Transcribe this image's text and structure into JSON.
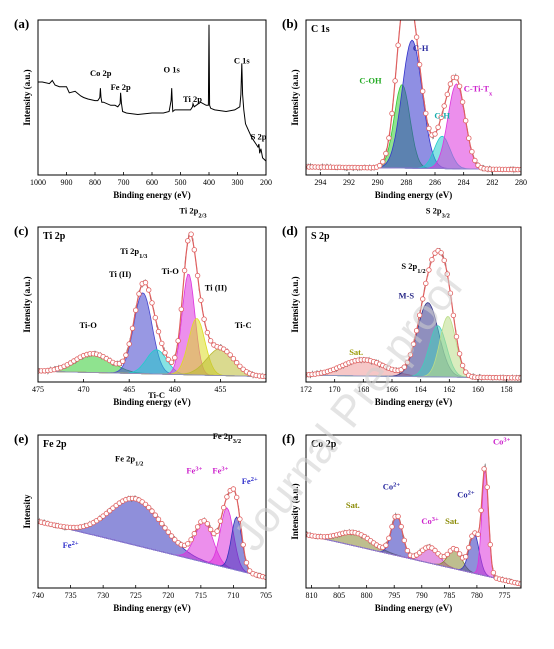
{
  "watermark": "Journal Pre-proof",
  "chart_data": [
    {
      "panel": "(a)",
      "type": "line",
      "subtitle": "",
      "xlabel": "Binding energy (eV)",
      "ylabel": "Intensity (a.u.)",
      "xlim": [
        1000,
        200
      ],
      "xreversed": true,
      "xticks": [
        1000,
        900,
        800,
        700,
        600,
        500,
        400,
        300,
        200
      ],
      "ylim": [
        0,
        100
      ],
      "yticks_shown": false,
      "series": [
        {
          "color": "#000000",
          "x": [
            1000,
            985,
            960,
            950,
            940,
            925,
            900,
            890,
            870,
            850,
            840,
            825,
            800,
            790,
            783,
            781,
            779,
            776,
            770,
            745,
            730,
            720,
            712,
            710,
            707,
            703,
            690,
            650,
            600,
            560,
            540,
            533,
            531,
            529,
            527,
            520,
            505,
            480,
            465,
            458,
            456,
            452,
            445,
            430,
            410,
            402,
            400,
            398,
            394,
            380,
            340,
            310,
            292,
            288,
            284.8,
            282,
            278,
            272,
            250,
            235,
            228,
            225,
            222,
            218,
            212,
            200
          ],
          "y": [
            60,
            60,
            59,
            61,
            58,
            57,
            57,
            53,
            54,
            51,
            50,
            49,
            48,
            48,
            50,
            56,
            50,
            47,
            47,
            45,
            45,
            44,
            46,
            53,
            46,
            41,
            40,
            39,
            40,
            40,
            41,
            48,
            56,
            48,
            41,
            42,
            42,
            42,
            42,
            44,
            46,
            44,
            45,
            47,
            45,
            45,
            97,
            45,
            43,
            42,
            41,
            42,
            44,
            52,
            72,
            52,
            42,
            33,
            24,
            20,
            18,
            20,
            14,
            17,
            11,
            9
          ]
        }
      ],
      "annotations": [
        {
          "text": "Co 2p",
          "x": 780,
          "y": 64
        },
        {
          "text": "Fe 2p",
          "x": 710,
          "y": 55
        },
        {
          "text": "O 1s",
          "x": 531,
          "y": 66
        },
        {
          "text": "Ti 2p",
          "x": 458,
          "y": 47
        },
        {
          "text": "C 1s",
          "x": 285,
          "y": 72
        },
        {
          "text": "S 2p",
          "x": 226,
          "y": 23
        }
      ]
    },
    {
      "panel": "(b)",
      "type": "line",
      "subtitle": "C 1s",
      "xlabel": "Binding energy (eV)",
      "ylabel": "Intensity (a.u.)",
      "xlim": [
        295,
        280
      ],
      "xreversed": true,
      "xticks": [
        294,
        292,
        290,
        288,
        286,
        284,
        282,
        280
      ],
      "ylim": [
        0,
        115
      ],
      "baseline": {
        "x": [
          295,
          280
        ],
        "y": [
          6,
          4
        ]
      },
      "components": [
        {
          "name": "C-OH",
          "center": 288.3,
          "height": 62,
          "sigma": 0.55,
          "color": "#33cc33"
        },
        {
          "name": "C-H",
          "center": 287.6,
          "height": 95,
          "sigma": 0.7,
          "color": "#3333cc"
        },
        {
          "name": "C-H",
          "center": 285.5,
          "height": 24,
          "sigma": 0.55,
          "color": "#22cccc"
        },
        {
          "name": "C-Ti-Tx",
          "center": 284.5,
          "height": 63,
          "sigma": 0.6,
          "color": "#dd33dd"
        }
      ],
      "annotations": [
        {
          "text": "C-OH",
          "x": 290.5,
          "y": 68,
          "color": "#22aa22"
        },
        {
          "text": "C-H",
          "x": 287.0,
          "y": 92,
          "color": "#2a2aa0"
        },
        {
          "text": "C-H",
          "x": 285.5,
          "y": 42,
          "color": "#11aaaa"
        },
        {
          "text": "C-Ti-Tx",
          "x": 283.0,
          "y": 62,
          "color": "#cc22cc"
        }
      ]
    },
    {
      "panel": "(c)",
      "type": "line",
      "subtitle": "Ti 2p",
      "xlabel": "Binding energy (eV)",
      "ylabel": "Intensity (a.u.)",
      "xlim": [
        475,
        450
      ],
      "xreversed": true,
      "xticks": [
        475,
        470,
        465,
        460,
        455
      ],
      "ylim": [
        0,
        115
      ],
      "baseline": {
        "x": [
          475,
          450
        ],
        "y": [
          8,
          4
        ]
      },
      "components": [
        {
          "name": "Ti-O",
          "center": 469.0,
          "height": 14,
          "sigma": 2.0,
          "color": "#33cc33"
        },
        {
          "name": "Ti (II)",
          "center": 463.5,
          "height": 60,
          "sigma": 1.0,
          "color": "#4444cc"
        },
        {
          "name": "Ti-C",
          "center": 462.0,
          "height": 18,
          "sigma": 1.1,
          "color": "#22cccc"
        },
        {
          "name": "Ti-O",
          "center": 458.5,
          "height": 75,
          "sigma": 0.7,
          "color": "#dd33dd"
        },
        {
          "name": "Ti (II)",
          "center": 457.6,
          "height": 42,
          "sigma": 0.9,
          "color": "#dddd22"
        },
        {
          "name": "Ti-C",
          "center": 455.0,
          "height": 20,
          "sigma": 1.5,
          "color": "#bbbb33"
        }
      ],
      "annotations": [
        {
          "text": "Ti-O",
          "x": 469.5,
          "y": 40,
          "color": "#000000"
        },
        {
          "text": "Ti (II)",
          "x": 466.0,
          "y": 78,
          "color": "#000000"
        },
        {
          "text": "Ti 2p1/3",
          "x": 464.5,
          "y": 95,
          "color": "#000000"
        },
        {
          "text": "Ti 2p2/3",
          "x": 458.0,
          "y": 125,
          "color": "#000000"
        },
        {
          "text": "Ti-O",
          "x": 460.5,
          "y": 80,
          "color": "#000000"
        },
        {
          "text": "Ti (II)",
          "x": 455.5,
          "y": 68,
          "color": "#000000"
        },
        {
          "text": "Ti-C",
          "x": 452.5,
          "y": 40,
          "color": "#000000"
        },
        {
          "text": "Ti-C",
          "x": 462.0,
          "y": -12,
          "color": "#000000"
        }
      ]
    },
    {
      "panel": "(d)",
      "type": "line",
      "subtitle": "S 2p",
      "xlabel": "Binding energy (eV)",
      "ylabel": "Intensity (a.u.)",
      "xlim": [
        172,
        157
      ],
      "xreversed": true,
      "xticks": [
        172,
        170,
        168,
        166,
        164,
        162,
        160,
        158
      ],
      "ylim": [
        0,
        115
      ],
      "baseline": {
        "x": [
          172,
          157
        ],
        "y": [
          5,
          3
        ]
      },
      "components": [
        {
          "name": "Sat.",
          "center": 168.0,
          "height": 12,
          "sigma": 1.5,
          "color": "#ee9999"
        },
        {
          "name": "M-S",
          "center": 163.5,
          "height": 55,
          "sigma": 0.75,
          "color": "#333388"
        },
        {
          "name": "S 2p1/2",
          "center": 162.8,
          "height": 38,
          "sigma": 0.6,
          "color": "#44ccbb"
        },
        {
          "name": "S 2p3/2",
          "center": 162.1,
          "height": 45,
          "sigma": 0.55,
          "color": "#bbdd88"
        }
      ],
      "annotations": [
        {
          "text": "Sat.",
          "x": 168.5,
          "y": 20,
          "color": "#999900"
        },
        {
          "text": "M-S",
          "x": 165.0,
          "y": 62,
          "color": "#2a2a88"
        },
        {
          "text": "S 2p1/2",
          "x": 164.5,
          "y": 84,
          "color": "#000000"
        },
        {
          "text": "S 2p3/2",
          "x": 162.8,
          "y": 125,
          "color": "#000000"
        }
      ]
    },
    {
      "panel": "(e)",
      "type": "line",
      "subtitle": "Fe 2p",
      "xlabel": "Binding energy (eV)",
      "ylabel": "Intensity",
      "xlim": [
        740,
        705
      ],
      "xreversed": true,
      "xticks": [
        740,
        735,
        730,
        725,
        720,
        715,
        710,
        705
      ],
      "ylim": [
        0,
        115
      ],
      "baseline": {
        "x": [
          740,
          705
        ],
        "y": [
          50,
          8
        ]
      },
      "components": [
        {
          "name": "Fe2+",
          "center": 725.0,
          "height": 35,
          "sigma": 4.0,
          "color": "#3333bb"
        },
        {
          "name": "Fe3+",
          "center": 714.5,
          "height": 30,
          "sigma": 1.4,
          "color": "#dd33dd"
        },
        {
          "name": "Fe3+",
          "center": 711.0,
          "height": 45,
          "sigma": 1.0,
          "color": "#dd33dd"
        },
        {
          "name": "Fe2+",
          "center": 709.5,
          "height": 40,
          "sigma": 0.8,
          "color": "#3333bb"
        }
      ],
      "annotations": [
        {
          "text": "Fe 2p1/2",
          "x": 726.0,
          "y": 95,
          "color": "#000000"
        },
        {
          "text": "Fe 2p3/2",
          "x": 711.0,
          "y": 112,
          "color": "#000000"
        },
        {
          "text": "Fe3+",
          "x": 716.0,
          "y": 86,
          "color": "#cc22cc"
        },
        {
          "text": "Fe3+",
          "x": 712.0,
          "y": 86,
          "color": "#cc22cc"
        },
        {
          "text": "Fe2+",
          "x": 707.5,
          "y": 78,
          "color": "#3333cc"
        },
        {
          "text": "Fe2+",
          "x": 735.0,
          "y": 30,
          "color": "#3333cc"
        }
      ]
    },
    {
      "panel": "(f)",
      "type": "line",
      "subtitle": "Co 2p",
      "xlabel": "Binding energy (eV)",
      "ylabel": "Intensity (a.u.)",
      "xlim": [
        811,
        772
      ],
      "xreversed": true,
      "xticks": [
        810,
        805,
        800,
        795,
        790,
        785,
        780,
        775
      ],
      "ylim": [
        0,
        115
      ],
      "baseline": {
        "x": [
          811,
          772
        ],
        "y": [
          40,
          3
        ]
      },
      "components": [
        {
          "name": "Sat.",
          "center": 802.0,
          "height": 10,
          "sigma": 3.0,
          "color": "#888833"
        },
        {
          "name": "Co2+",
          "center": 794.5,
          "height": 30,
          "sigma": 1.0,
          "color": "#3333bb"
        },
        {
          "name": "Co3+",
          "center": 788.5,
          "height": 12,
          "sigma": 1.6,
          "color": "#cc44cc"
        },
        {
          "name": "Sat.",
          "center": 784.0,
          "height": 15,
          "sigma": 1.2,
          "color": "#888833"
        },
        {
          "name": "Co2+",
          "center": 780.5,
          "height": 30,
          "sigma": 0.9,
          "color": "#3333bb"
        },
        {
          "name": "Co3+",
          "center": 778.5,
          "height": 80,
          "sigma": 0.6,
          "color": "#dd33dd"
        }
      ],
      "annotations": [
        {
          "text": "Sat.",
          "x": 802.5,
          "y": 60,
          "color": "#888800"
        },
        {
          "text": "Co2+",
          "x": 795.5,
          "y": 74,
          "color": "#2a2aa0"
        },
        {
          "text": "Co3+",
          "x": 788.5,
          "y": 48,
          "color": "#cc22cc"
        },
        {
          "text": "Sat.",
          "x": 784.5,
          "y": 48,
          "color": "#888800"
        },
        {
          "text": "Co2+",
          "x": 782.0,
          "y": 68,
          "color": "#2a2aa0"
        },
        {
          "text": "Co3+",
          "x": 775.5,
          "y": 108,
          "color": "#cc22cc"
        }
      ]
    }
  ]
}
